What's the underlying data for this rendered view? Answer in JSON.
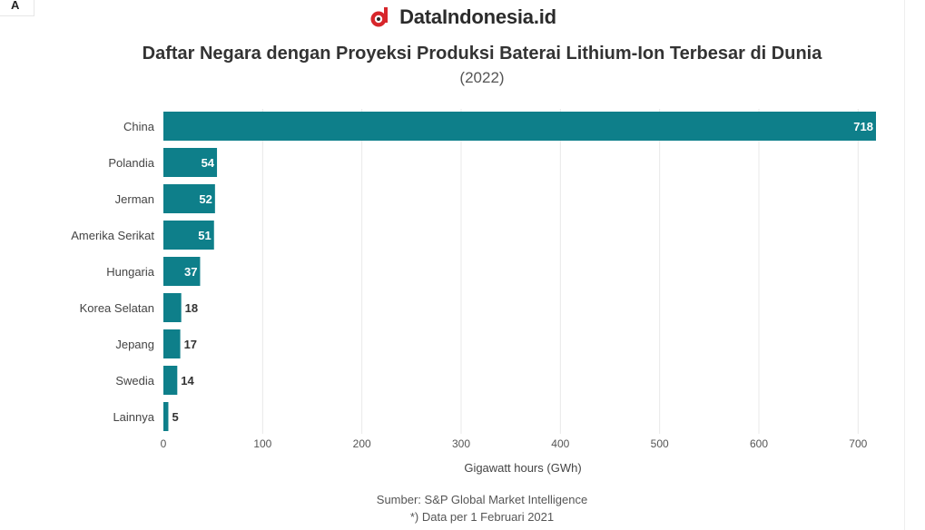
{
  "corner_label": "A",
  "brand": {
    "name": "DataIndonesia.id"
  },
  "colors": {
    "bar": "#0e7f8a",
    "grid": "#e8e8e8",
    "brand_red": "#d7262b"
  },
  "chart_data": {
    "type": "bar",
    "orientation": "horizontal",
    "title": "Daftar Negara dengan Proyeksi Produksi Baterai Lithium-Ion Terbesar di Dunia",
    "subtitle": "(2022)",
    "categories": [
      "China",
      "Polandia",
      "Jerman",
      "Amerika Serikat",
      "Hungaria",
      "Korea Selatan",
      "Jepang",
      "Swedia",
      "Lainnya"
    ],
    "values": [
      718,
      54,
      52,
      51,
      37,
      18,
      17,
      14,
      5
    ],
    "xlabel": "Gigawatt hours (GWh)",
    "ylabel": "",
    "xlim": [
      0,
      718
    ],
    "xticks": [
      0,
      100,
      200,
      300,
      400,
      500,
      600,
      700
    ],
    "grid": true,
    "legend": "none"
  },
  "footer": {
    "source": "Sumber: S&P Global Market Intelligence",
    "note": "*) Data per 1 Februari 2021"
  }
}
